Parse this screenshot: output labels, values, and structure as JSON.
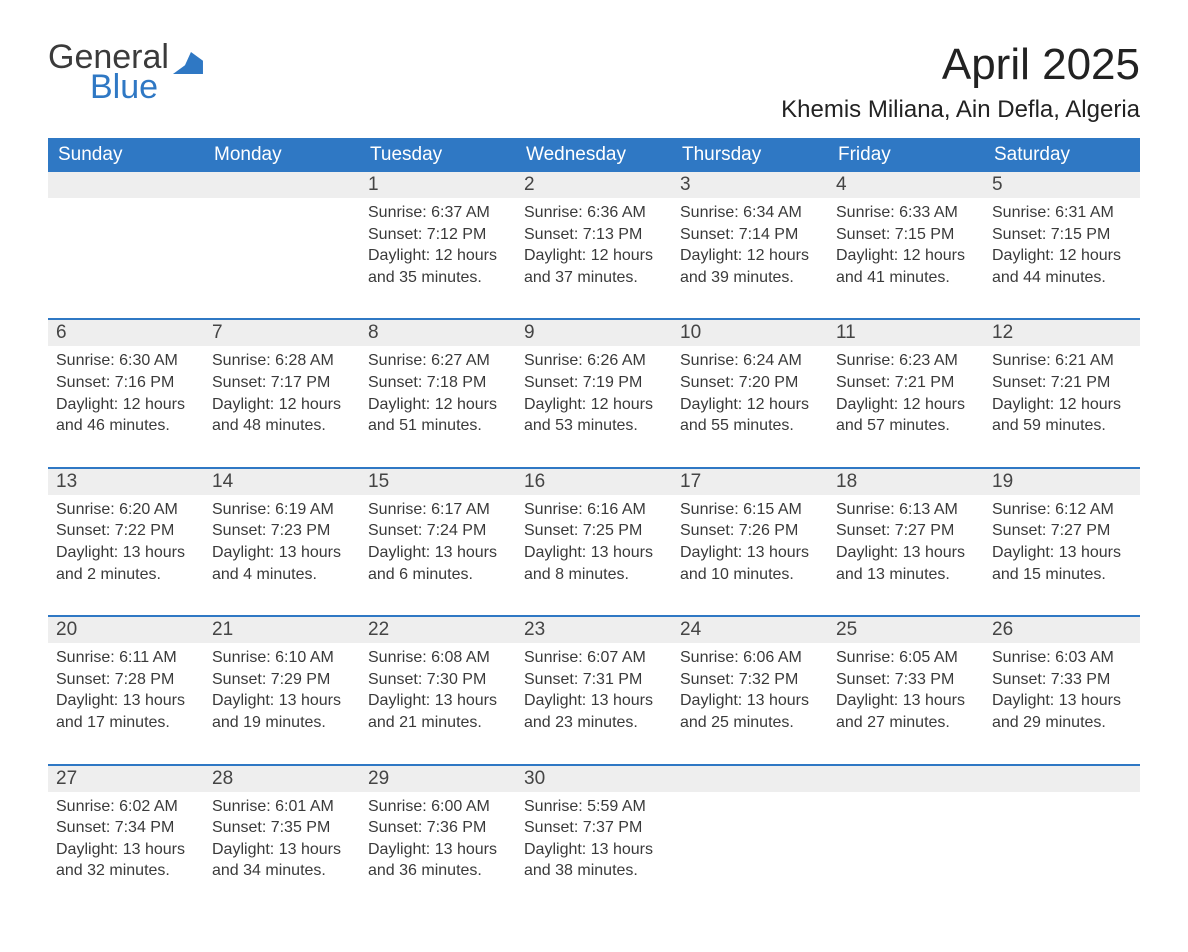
{
  "logo": {
    "line1": "General",
    "line2": "Blue"
  },
  "title": "April 2025",
  "subtitle": "Khemis Miliana, Ain Defla, Algeria",
  "colors": {
    "header_bg": "#2f78c4",
    "header_text": "#ffffff",
    "daynum_bg": "#eeeeee",
    "row_border": "#2f78c4",
    "text": "#3a3a3a",
    "page_bg": "#ffffff"
  },
  "day_headers": [
    "Sunday",
    "Monday",
    "Tuesday",
    "Wednesday",
    "Thursday",
    "Friday",
    "Saturday"
  ],
  "weeks": [
    [
      null,
      null,
      {
        "n": "1",
        "sunrise": "Sunrise: 6:37 AM",
        "sunset": "Sunset: 7:12 PM",
        "daylight": "Daylight: 12 hours and 35 minutes."
      },
      {
        "n": "2",
        "sunrise": "Sunrise: 6:36 AM",
        "sunset": "Sunset: 7:13 PM",
        "daylight": "Daylight: 12 hours and 37 minutes."
      },
      {
        "n": "3",
        "sunrise": "Sunrise: 6:34 AM",
        "sunset": "Sunset: 7:14 PM",
        "daylight": "Daylight: 12 hours and 39 minutes."
      },
      {
        "n": "4",
        "sunrise": "Sunrise: 6:33 AM",
        "sunset": "Sunset: 7:15 PM",
        "daylight": "Daylight: 12 hours and 41 minutes."
      },
      {
        "n": "5",
        "sunrise": "Sunrise: 6:31 AM",
        "sunset": "Sunset: 7:15 PM",
        "daylight": "Daylight: 12 hours and 44 minutes."
      }
    ],
    [
      {
        "n": "6",
        "sunrise": "Sunrise: 6:30 AM",
        "sunset": "Sunset: 7:16 PM",
        "daylight": "Daylight: 12 hours and 46 minutes."
      },
      {
        "n": "7",
        "sunrise": "Sunrise: 6:28 AM",
        "sunset": "Sunset: 7:17 PM",
        "daylight": "Daylight: 12 hours and 48 minutes."
      },
      {
        "n": "8",
        "sunrise": "Sunrise: 6:27 AM",
        "sunset": "Sunset: 7:18 PM",
        "daylight": "Daylight: 12 hours and 51 minutes."
      },
      {
        "n": "9",
        "sunrise": "Sunrise: 6:26 AM",
        "sunset": "Sunset: 7:19 PM",
        "daylight": "Daylight: 12 hours and 53 minutes."
      },
      {
        "n": "10",
        "sunrise": "Sunrise: 6:24 AM",
        "sunset": "Sunset: 7:20 PM",
        "daylight": "Daylight: 12 hours and 55 minutes."
      },
      {
        "n": "11",
        "sunrise": "Sunrise: 6:23 AM",
        "sunset": "Sunset: 7:21 PM",
        "daylight": "Daylight: 12 hours and 57 minutes."
      },
      {
        "n": "12",
        "sunrise": "Sunrise: 6:21 AM",
        "sunset": "Sunset: 7:21 PM",
        "daylight": "Daylight: 12 hours and 59 minutes."
      }
    ],
    [
      {
        "n": "13",
        "sunrise": "Sunrise: 6:20 AM",
        "sunset": "Sunset: 7:22 PM",
        "daylight": "Daylight: 13 hours and 2 minutes."
      },
      {
        "n": "14",
        "sunrise": "Sunrise: 6:19 AM",
        "sunset": "Sunset: 7:23 PM",
        "daylight": "Daylight: 13 hours and 4 minutes."
      },
      {
        "n": "15",
        "sunrise": "Sunrise: 6:17 AM",
        "sunset": "Sunset: 7:24 PM",
        "daylight": "Daylight: 13 hours and 6 minutes."
      },
      {
        "n": "16",
        "sunrise": "Sunrise: 6:16 AM",
        "sunset": "Sunset: 7:25 PM",
        "daylight": "Daylight: 13 hours and 8 minutes."
      },
      {
        "n": "17",
        "sunrise": "Sunrise: 6:15 AM",
        "sunset": "Sunset: 7:26 PM",
        "daylight": "Daylight: 13 hours and 10 minutes."
      },
      {
        "n": "18",
        "sunrise": "Sunrise: 6:13 AM",
        "sunset": "Sunset: 7:27 PM",
        "daylight": "Daylight: 13 hours and 13 minutes."
      },
      {
        "n": "19",
        "sunrise": "Sunrise: 6:12 AM",
        "sunset": "Sunset: 7:27 PM",
        "daylight": "Daylight: 13 hours and 15 minutes."
      }
    ],
    [
      {
        "n": "20",
        "sunrise": "Sunrise: 6:11 AM",
        "sunset": "Sunset: 7:28 PM",
        "daylight": "Daylight: 13 hours and 17 minutes."
      },
      {
        "n": "21",
        "sunrise": "Sunrise: 6:10 AM",
        "sunset": "Sunset: 7:29 PM",
        "daylight": "Daylight: 13 hours and 19 minutes."
      },
      {
        "n": "22",
        "sunrise": "Sunrise: 6:08 AM",
        "sunset": "Sunset: 7:30 PM",
        "daylight": "Daylight: 13 hours and 21 minutes."
      },
      {
        "n": "23",
        "sunrise": "Sunrise: 6:07 AM",
        "sunset": "Sunset: 7:31 PM",
        "daylight": "Daylight: 13 hours and 23 minutes."
      },
      {
        "n": "24",
        "sunrise": "Sunrise: 6:06 AM",
        "sunset": "Sunset: 7:32 PM",
        "daylight": "Daylight: 13 hours and 25 minutes."
      },
      {
        "n": "25",
        "sunrise": "Sunrise: 6:05 AM",
        "sunset": "Sunset: 7:33 PM",
        "daylight": "Daylight: 13 hours and 27 minutes."
      },
      {
        "n": "26",
        "sunrise": "Sunrise: 6:03 AM",
        "sunset": "Sunset: 7:33 PM",
        "daylight": "Daylight: 13 hours and 29 minutes."
      }
    ],
    [
      {
        "n": "27",
        "sunrise": "Sunrise: 6:02 AM",
        "sunset": "Sunset: 7:34 PM",
        "daylight": "Daylight: 13 hours and 32 minutes."
      },
      {
        "n": "28",
        "sunrise": "Sunrise: 6:01 AM",
        "sunset": "Sunset: 7:35 PM",
        "daylight": "Daylight: 13 hours and 34 minutes."
      },
      {
        "n": "29",
        "sunrise": "Sunrise: 6:00 AM",
        "sunset": "Sunset: 7:36 PM",
        "daylight": "Daylight: 13 hours and 36 minutes."
      },
      {
        "n": "30",
        "sunrise": "Sunrise: 5:59 AM",
        "sunset": "Sunset: 7:37 PM",
        "daylight": "Daylight: 13 hours and 38 minutes."
      },
      null,
      null,
      null
    ]
  ]
}
